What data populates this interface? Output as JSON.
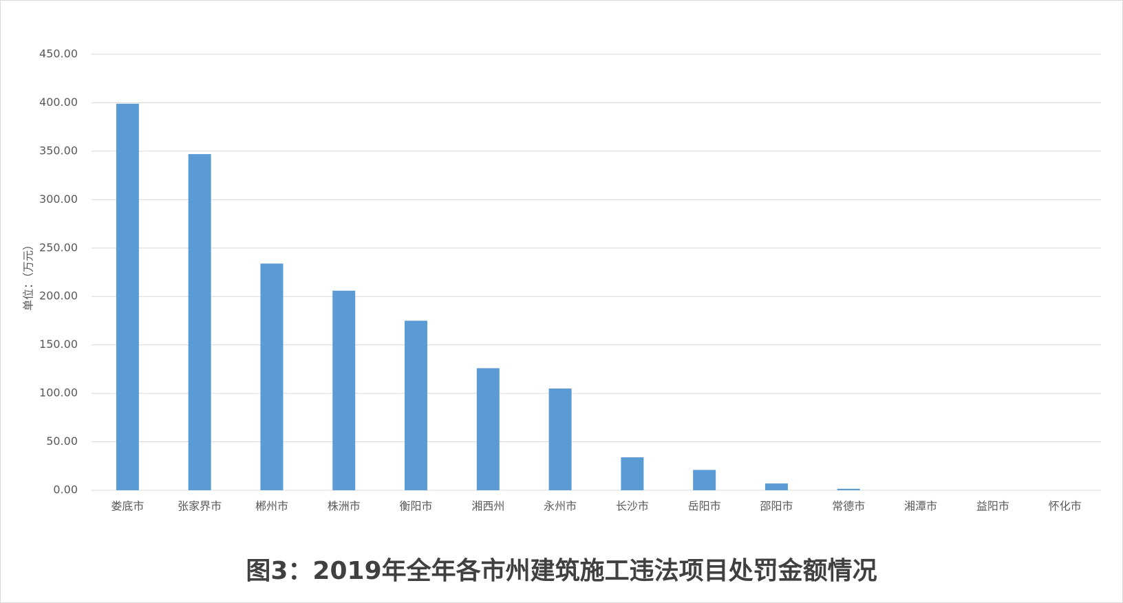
{
  "chart_data": {
    "type": "bar",
    "title": "图3：2019年全年各市州建筑施工违法项目处罚金额情况",
    "y_label": "单位：（万元）",
    "categories": [
      "娄底市",
      "张家界市",
      "郴州市",
      "株洲市",
      "衡阳市",
      "湘西州",
      "永州市",
      "长沙市",
      "岳阳市",
      "邵阳市",
      "常德市",
      "湘潭市",
      "益阳市",
      "怀化市"
    ],
    "values": [
      399,
      347,
      234,
      206,
      175,
      126,
      105,
      34,
      21,
      7,
      1.5,
      0,
      0,
      0
    ],
    "color": "#5b9bd5",
    "ylim": [
      0,
      450
    ],
    "yticks": [
      {
        "value": 0,
        "label": "0.00"
      },
      {
        "value": 50,
        "label": "50.00"
      },
      {
        "value": 100,
        "label": "100.00"
      },
      {
        "value": 150,
        "label": "150.00"
      },
      {
        "value": 200,
        "label": "200.00"
      },
      {
        "value": 250,
        "label": "250.00"
      },
      {
        "value": 300,
        "label": "300.00"
      },
      {
        "value": 350,
        "label": "350.00"
      },
      {
        "value": 400,
        "label": "400.00"
      },
      {
        "value": 450,
        "label": "450.00"
      }
    ],
    "grid": true
  }
}
